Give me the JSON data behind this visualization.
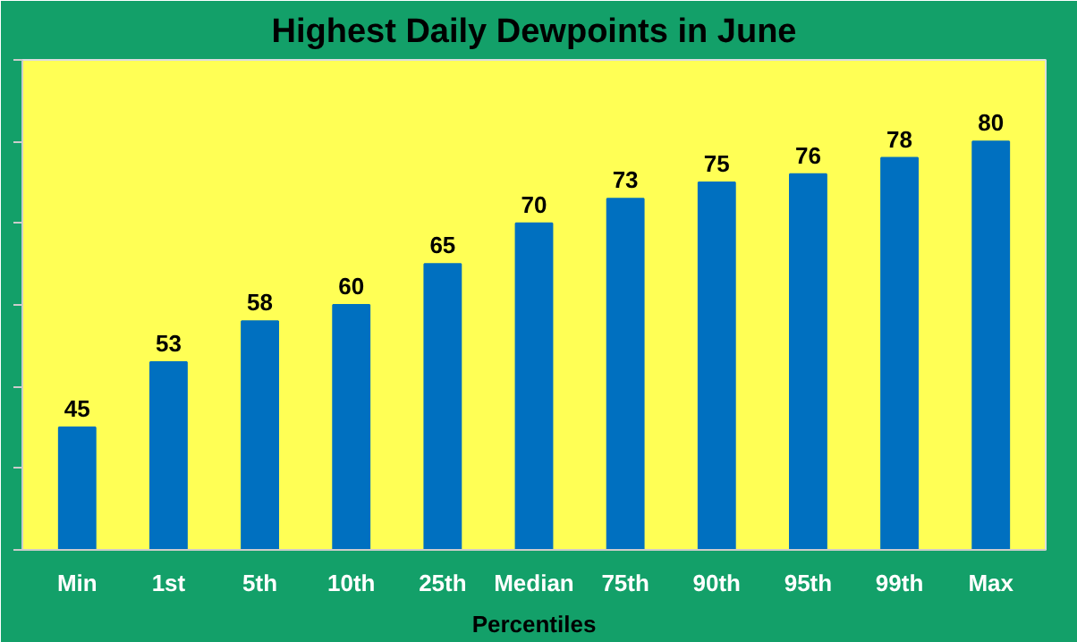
{
  "chart_data": {
    "type": "bar",
    "title": "Highest Daily Dewpoints in June",
    "xlabel": "Percentiles",
    "categories": [
      "Min",
      "1st",
      "5th",
      "10th",
      "25th",
      "Median",
      "75th",
      "90th",
      "95th",
      "99th",
      "Max"
    ],
    "values": [
      45,
      53,
      58,
      60,
      65,
      70,
      73,
      75,
      76,
      78,
      80
    ],
    "color": "#0070c0",
    "ylim": [
      30,
      90
    ],
    "yticks": [
      {
        "value": 30,
        "label": null
      },
      {
        "value": 40,
        "label": null
      },
      {
        "value": 50,
        "label": null
      },
      {
        "value": 60,
        "label": null
      },
      {
        "value": 70,
        "label": null
      },
      {
        "value": 80,
        "label": null
      },
      {
        "value": 90,
        "label": null
      }
    ],
    "data_labels": true
  }
}
